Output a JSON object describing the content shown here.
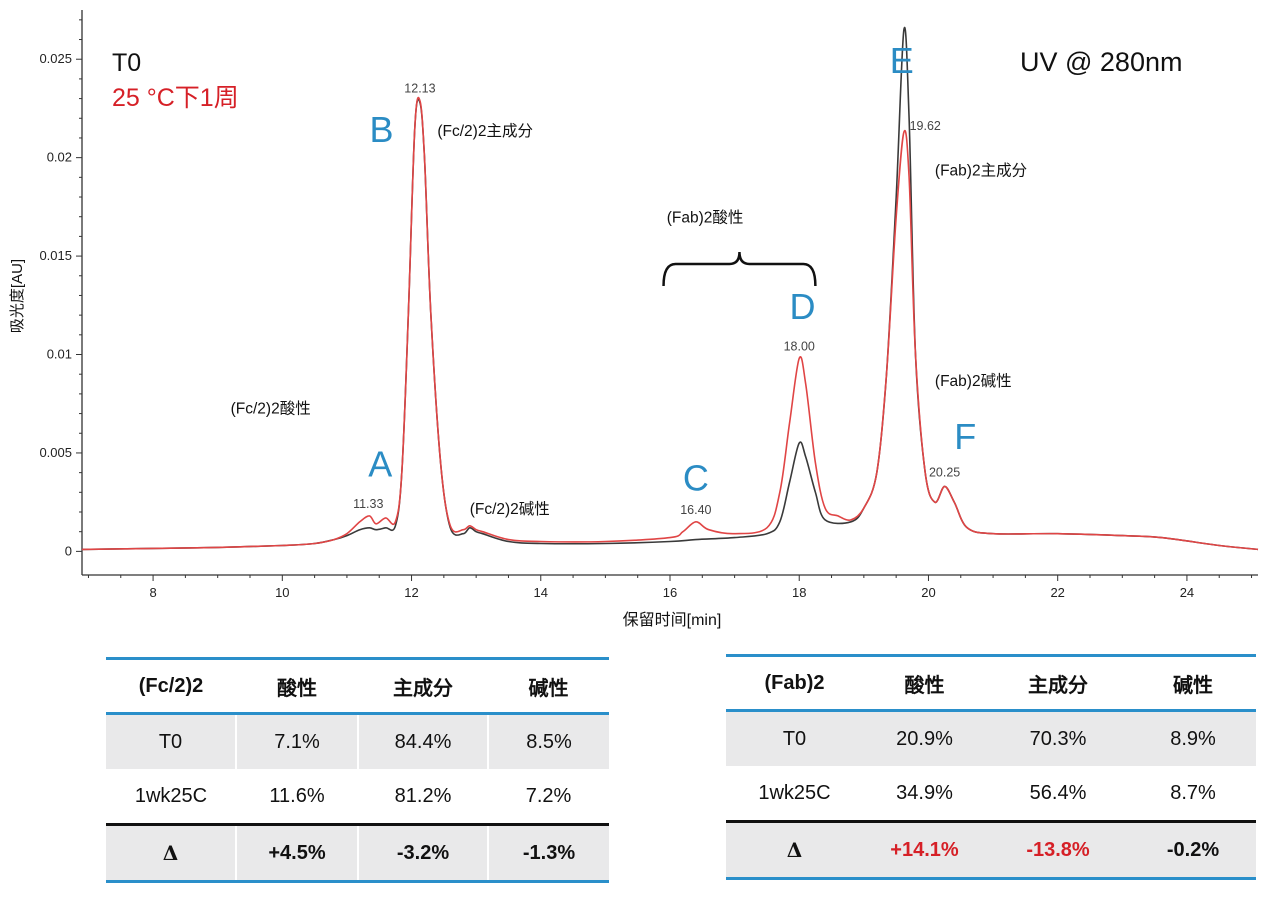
{
  "chart_data": {
    "type": "line",
    "title": "",
    "xlabel": "保留时间[min]",
    "ylabel": "吸光度[AU]",
    "xlim": [
      6.9,
      25.1
    ],
    "ylim": [
      -0.0012,
      0.0275
    ],
    "x_ticks": [
      8,
      10,
      12,
      14,
      16,
      18,
      20,
      22,
      24
    ],
    "x_tick_labels": [
      "8",
      "10",
      "12",
      "14",
      "16",
      "18",
      "20",
      "22",
      "24"
    ],
    "y_ticks": [
      0,
      0.005,
      0.01,
      0.015,
      0.02,
      0.025
    ],
    "y_tick_labels": [
      "0",
      "0.005",
      "0.01",
      "0.015",
      "0.02",
      "0.025"
    ],
    "grid": false,
    "legend": [
      {
        "text": "T0",
        "color": "#111111"
      },
      {
        "text": "25 °C下1周",
        "color": "#d62027"
      }
    ],
    "detector_label": "UV @ 280nm",
    "series": [
      {
        "name": "T0",
        "color": "#3a3a3a",
        "x": [
          6.9,
          8.0,
          9.0,
          10.0,
          10.5,
          10.8,
          11.0,
          11.2,
          11.35,
          11.45,
          11.6,
          11.75,
          11.85,
          11.95,
          12.05,
          12.13,
          12.2,
          12.3,
          12.45,
          12.6,
          12.8,
          12.9,
          13.0,
          13.1,
          13.5,
          14.0,
          15.0,
          16.0,
          16.4,
          17.0,
          17.5,
          17.7,
          17.85,
          18.0,
          18.1,
          18.25,
          18.4,
          18.8,
          19.0,
          19.2,
          19.35,
          19.5,
          19.62,
          19.7,
          19.8,
          19.95,
          20.1,
          20.25,
          20.4,
          20.6,
          21.0,
          22.0,
          23.0,
          23.6,
          24.5,
          25.1
        ],
        "y": [
          0.0001,
          0.00015,
          0.0002,
          0.0003,
          0.0004,
          0.0006,
          0.0008,
          0.0011,
          0.0012,
          0.0011,
          0.0012,
          0.0013,
          0.004,
          0.012,
          0.0215,
          0.0228,
          0.02,
          0.012,
          0.0045,
          0.0012,
          0.0009,
          0.0012,
          0.001,
          0.0009,
          0.0005,
          0.0004,
          0.0004,
          0.0005,
          0.0006,
          0.0007,
          0.0009,
          0.0015,
          0.0035,
          0.0055,
          0.0048,
          0.003,
          0.0016,
          0.0015,
          0.0022,
          0.004,
          0.009,
          0.018,
          0.0265,
          0.022,
          0.01,
          0.004,
          0.0025,
          0.0033,
          0.0025,
          0.0012,
          0.0009,
          0.0009,
          0.0008,
          0.0007,
          0.0003,
          0.0001
        ]
      },
      {
        "name": "25 °C下1周",
        "color": "#e04545",
        "x": [
          6.9,
          8.0,
          9.0,
          10.0,
          10.5,
          10.8,
          11.0,
          11.2,
          11.35,
          11.45,
          11.6,
          11.75,
          11.85,
          11.95,
          12.05,
          12.13,
          12.2,
          12.3,
          12.45,
          12.6,
          12.8,
          12.9,
          13.0,
          13.1,
          13.5,
          14.0,
          15.0,
          16.0,
          16.2,
          16.4,
          16.6,
          17.0,
          17.5,
          17.7,
          17.85,
          18.0,
          18.1,
          18.25,
          18.4,
          18.6,
          18.8,
          19.0,
          19.2,
          19.35,
          19.5,
          19.62,
          19.7,
          19.8,
          19.95,
          20.1,
          20.25,
          20.4,
          20.6,
          21.0,
          22.0,
          23.0,
          23.6,
          24.5,
          25.1
        ],
        "y": [
          0.0001,
          0.00015,
          0.0002,
          0.0003,
          0.0004,
          0.0006,
          0.0009,
          0.0015,
          0.0018,
          0.0014,
          0.0017,
          0.0015,
          0.004,
          0.012,
          0.0215,
          0.0229,
          0.02,
          0.012,
          0.0045,
          0.0013,
          0.0011,
          0.0013,
          0.0011,
          0.001,
          0.0006,
          0.0005,
          0.0005,
          0.0007,
          0.001,
          0.0015,
          0.0011,
          0.0009,
          0.0012,
          0.003,
          0.0065,
          0.0098,
          0.0085,
          0.0045,
          0.0022,
          0.0018,
          0.0016,
          0.0022,
          0.004,
          0.009,
          0.017,
          0.0213,
          0.019,
          0.01,
          0.004,
          0.0025,
          0.0033,
          0.0025,
          0.0012,
          0.0009,
          0.0009,
          0.0008,
          0.0007,
          0.0003,
          0.0001
        ]
      }
    ],
    "peak_letters": [
      {
        "text": "A",
        "x": 11.33,
        "y": 0.0038
      },
      {
        "text": "B",
        "x": 11.35,
        "y": 0.0208
      },
      {
        "text": "C",
        "x": 16.2,
        "y": 0.0031
      },
      {
        "text": "D",
        "x": 17.85,
        "y": 0.0118
      },
      {
        "text": "E",
        "x": 19.4,
        "y": 0.0243
      },
      {
        "text": "F",
        "x": 20.4,
        "y": 0.0052
      }
    ],
    "retention_labels": [
      {
        "text": "11.33",
        "x": 11.33,
        "y": 0.0022
      },
      {
        "text": "12.13",
        "x": 12.13,
        "y": 0.0233
      },
      {
        "text": "16.40",
        "x": 16.4,
        "y": 0.0019
      },
      {
        "text": "18.00",
        "x": 18.0,
        "y": 0.0102
      },
      {
        "text": "19.62",
        "x": 19.95,
        "y": 0.0214
      },
      {
        "text": "20.25",
        "x": 20.25,
        "y": 0.0038
      }
    ],
    "annotations": [
      {
        "text": "(Fc/2)2主成分",
        "x": 12.4,
        "y": 0.0211
      },
      {
        "text": "(Fc/2)2酸性",
        "x": 9.2,
        "y": 0.007
      },
      {
        "text": "(Fc/2)2碱性",
        "x": 12.9,
        "y": 0.0019
      },
      {
        "text": "(Fab)2酸性",
        "x": 15.95,
        "y": 0.0167
      },
      {
        "text": "(Fab)2主成分",
        "x": 20.1,
        "y": 0.0191
      },
      {
        "text": "(Fab)2碱性",
        "x": 20.1,
        "y": 0.0084
      }
    ],
    "brace": {
      "x_start": 15.9,
      "x_end": 18.25,
      "y": 0.0146
    }
  },
  "fc_table": {
    "headers": [
      "(Fc/2)2",
      "酸性",
      "主成分",
      "碱性"
    ],
    "rows": [
      [
        "T0",
        "7.1%",
        "84.4%",
        "8.5%"
      ],
      [
        "1wk25C",
        "11.6%",
        "81.2%",
        "7.2%"
      ],
      [
        "Δ",
        "+4.5%",
        "-3.2%",
        "-1.3%"
      ]
    ]
  },
  "fab_table": {
    "headers": [
      "(Fab)2",
      "酸性",
      "主成分",
      "碱性"
    ],
    "rows": [
      [
        "T0",
        "20.9%",
        "70.3%",
        "8.9%"
      ],
      [
        "1wk25C",
        "34.9%",
        "56.4%",
        "8.7%"
      ],
      [
        "Δ",
        "+14.1%",
        "-13.8%",
        "-0.2%"
      ]
    ]
  },
  "colors": {
    "accent": "#2a8fca",
    "letter": "#2b8cc4",
    "highlight": "#d62027"
  }
}
